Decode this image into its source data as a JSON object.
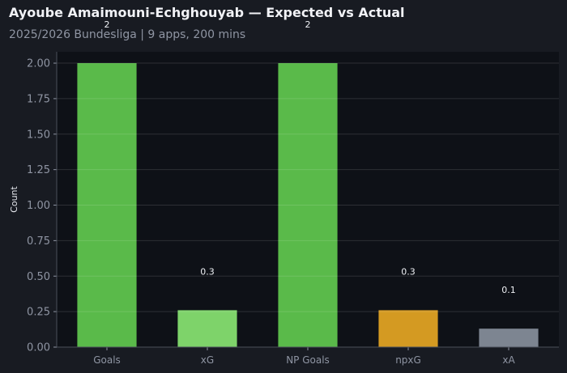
{
  "header": {
    "title": "Ayoube Amaimouni-Echghouyab — Expected vs Actual",
    "subtitle": "2025/2026 Bundesliga | 9 apps, 200 mins"
  },
  "colors": {
    "background": "#181b22",
    "plot_background": "#0e1117",
    "goals": "#5aba4a",
    "xg": "#7ed36a",
    "npxg": "#d49a22",
    "xa": "#7d8591"
  },
  "chart_data": {
    "type": "bar",
    "categories": [
      "Goals",
      "xG",
      "NP Goals",
      "npxG",
      "xA"
    ],
    "values": [
      2,
      0.26,
      2,
      0.26,
      0.13
    ],
    "data_labels": [
      "2",
      "0.3",
      "2",
      "0.3",
      "0.1"
    ],
    "bar_colors": [
      "#5aba4a",
      "#7ed36a",
      "#5aba4a",
      "#d49a22",
      "#7d8591"
    ],
    "ylabel": "Count",
    "xlabel": "",
    "ylim": [
      0,
      2.08
    ],
    "yticks": [
      0,
      0.25,
      0.5,
      0.75,
      1.0,
      1.25,
      1.5,
      1.75,
      2.0
    ],
    "ytick_labels": [
      "0.00",
      "0.25",
      "0.50",
      "0.75",
      "1.00",
      "1.25",
      "1.50",
      "1.75",
      "2.00"
    ],
    "grid": true
  }
}
